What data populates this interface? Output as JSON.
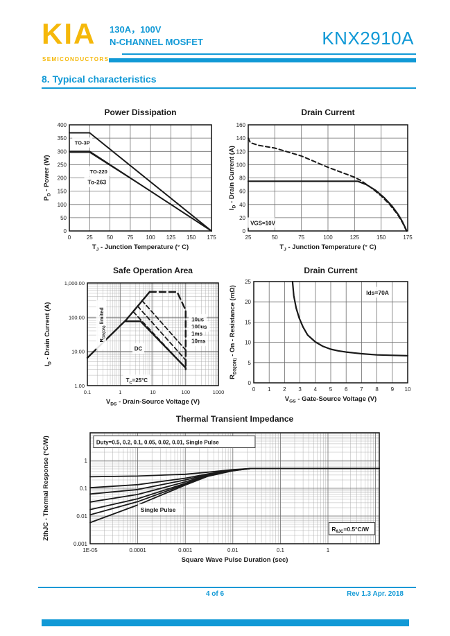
{
  "colors": {
    "cyan": "#1199D6",
    "yellow": "#F5B80A",
    "line": "#1a1a1a"
  },
  "header": {
    "logo": "KIA",
    "logo_sub": "SEMICONDUCTORS",
    "rating": "130A，100V",
    "device_type": "N-CHANNEL MOSFET",
    "part_number": "KNX2910A"
  },
  "section_title": "8. Typical characteristics",
  "footer": {
    "page": "4 of 6",
    "rev": "Rev 1.3 Apr. 2018"
  },
  "chart_data": [
    {
      "id": "power-dissipation",
      "type": "line",
      "title": "Power Dissipation",
      "xlabel": "T_{J} - Junction Temperature (° C)",
      "ylabel": "P_{D} - Power (W)",
      "xlim": [
        0,
        175
      ],
      "ylim": [
        0,
        400
      ],
      "xticks": [
        0,
        25,
        50,
        75,
        100,
        125,
        150,
        175
      ],
      "yticks": [
        0,
        50,
        100,
        150,
        200,
        250,
        300,
        350,
        400
      ],
      "grid": true,
      "legend_position": "inline",
      "series": [
        {
          "name": "TO-3P",
          "style": "solid",
          "width": 2,
          "points": [
            [
              0,
              370
            ],
            [
              25,
              370
            ],
            [
              175,
              0
            ]
          ]
        },
        {
          "name": "TO-220",
          "style": "solid",
          "width": 2,
          "points": [
            [
              0,
              300
            ],
            [
              25,
              300
            ],
            [
              175,
              0
            ]
          ]
        },
        {
          "name": "To-263",
          "style": "solid",
          "width": 1.4,
          "points": [
            [
              0,
              296
            ],
            [
              25,
              296
            ],
            [
              100,
              150
            ],
            [
              175,
              0
            ]
          ]
        }
      ],
      "annotations": [
        {
          "text": "TO-3P",
          "x": 16,
          "y": 332,
          "size": 7.5,
          "bg": true
        },
        {
          "text": "TO-220",
          "x": 36,
          "y": 224,
          "size": 7.5,
          "bg": true
        },
        {
          "text": "To-263",
          "x": 34,
          "y": 184,
          "size": 8.5,
          "bg": true
        }
      ]
    },
    {
      "id": "drain-current-tj",
      "type": "line",
      "title": "Drain Current",
      "xlabel": "T_{J} - Junction Temperature (° C)",
      "ylabel": "I_{D} - Drain Current (A)",
      "xlim": [
        25,
        175
      ],
      "ylim": [
        0,
        160
      ],
      "xticks": [
        25,
        50,
        75,
        100,
        125,
        150,
        175
      ],
      "yticks": [
        0,
        20,
        40,
        60,
        80,
        100,
        120,
        140,
        160
      ],
      "grid": true,
      "series": [
        {
          "name": "pulsed",
          "style": "dashed",
          "width": 2,
          "points": [
            [
              25,
              140
            ],
            [
              27,
              133
            ],
            [
              35,
              129
            ],
            [
              50,
              125
            ],
            [
              75,
              113
            ],
            [
              100,
              96
            ],
            [
              125,
              81
            ],
            [
              131,
              76
            ],
            [
              140,
              66
            ],
            [
              150,
              53
            ],
            [
              158,
              40
            ],
            [
              165,
              26
            ],
            [
              170,
              13
            ],
            [
              173,
              3
            ],
            [
              174,
              0
            ]
          ]
        },
        {
          "name": "continuous",
          "style": "solid",
          "width": 2.2,
          "points": [
            [
              25,
              75
            ],
            [
              128,
              75
            ],
            [
              136,
              70
            ],
            [
              145,
              61
            ],
            [
              153,
              50
            ],
            [
              160,
              38
            ],
            [
              166,
              25
            ],
            [
              170,
              14
            ],
            [
              173,
              4
            ],
            [
              174,
              0
            ]
          ]
        }
      ],
      "annotations": [
        {
          "text": "VGS=10V",
          "x": 27,
          "y": 12,
          "size": 8,
          "bg": true,
          "anchor": "start"
        }
      ]
    },
    {
      "id": "soa",
      "type": "line",
      "title": "Safe Operation Area",
      "xlabel": "V_{DS} - Drain-Source Voltage (V)",
      "ylabel": "I_{D} - Drain Current (A)",
      "xscale": "log",
      "yscale": "log",
      "xlim": [
        0.1,
        1000
      ],
      "ylim": [
        1,
        1000
      ],
      "xticks": [
        0.1,
        1,
        10,
        100,
        1000
      ],
      "xtick_labels": [
        "0.1",
        "1",
        "10",
        "100",
        "1000"
      ],
      "yticks": [
        1,
        10,
        100,
        1000
      ],
      "ytick_labels": [
        "1.00",
        "10.00",
        "100.00",
        "1,000.00"
      ],
      "grid": true,
      "series": [
        {
          "name": "rds-on-limit",
          "style": "solid",
          "width": 2.4,
          "points": [
            [
              0.1,
              6.5
            ],
            [
              1.5,
              82
            ],
            [
              8,
              550
            ]
          ]
        },
        {
          "name": "DC",
          "style": "solid",
          "width": 2.4,
          "points": [
            [
              1.5,
              76
            ],
            [
              4.2,
              76
            ],
            [
              100,
              3.3
            ],
            [
              100,
              3
            ]
          ]
        },
        {
          "name": "pulse-envelope-10us",
          "style": "longdash",
          "width": 2.4,
          "points": [
            [
              8,
              550
            ],
            [
              55,
              545
            ],
            [
              100,
              160
            ],
            [
              100,
              3.2
            ]
          ]
        },
        {
          "name": "100us",
          "style": "dashed",
          "width": 1.8,
          "points": [
            [
              4.6,
              310
            ],
            [
              100,
              11
            ]
          ]
        },
        {
          "name": "1ms",
          "style": "dashed",
          "width": 1.8,
          "points": [
            [
              3.4,
              210
            ],
            [
              100,
              5.6
            ]
          ]
        },
        {
          "name": "10ms",
          "style": "dashed",
          "width": 1.8,
          "points": [
            [
              2.5,
              145
            ],
            [
              92,
              3.6
            ]
          ]
        }
      ],
      "annotations": [
        {
          "text": "R_{DS(ON)} limited",
          "x": 0.27,
          "y": 60,
          "size": 7.5,
          "rotate": -90,
          "bg": true
        },
        {
          "text": "DC",
          "x": 3.6,
          "y": 12,
          "size": 8,
          "bg": true
        },
        {
          "text": "T_{C}=25°C",
          "x": 1.5,
          "y": 1.45,
          "size": 8,
          "bg": true,
          "anchor": "start"
        },
        {
          "text": "10µs",
          "x": 150,
          "y": 85,
          "size": 8,
          "bg": true,
          "anchor": "start"
        },
        {
          "text": "100µs",
          "x": 150,
          "y": 52,
          "size": 8,
          "bg": true,
          "anchor": "start"
        },
        {
          "text": "1ms",
          "x": 150,
          "y": 33,
          "size": 8,
          "bg": true,
          "anchor": "start"
        },
        {
          "text": "10ms",
          "x": 150,
          "y": 20,
          "size": 8,
          "bg": true,
          "anchor": "start"
        }
      ]
    },
    {
      "id": "rdson-vgs",
      "type": "line",
      "title": "Drain Current",
      "xlabel": "V_{GS} - Gate-Source Voltage (V)",
      "ylabel": "R_{DS(ON)} - On - Resistance (mΩ)",
      "xlim": [
        0,
        10
      ],
      "ylim": [
        0,
        25
      ],
      "xticks": [
        0,
        1,
        2,
        3,
        4,
        5,
        6,
        7,
        8,
        9,
        10
      ],
      "yticks": [
        0,
        5,
        10,
        15,
        20,
        25
      ],
      "grid": true,
      "series": [
        {
          "name": "rds-on",
          "style": "solid",
          "width": 2.2,
          "points": [
            [
              2.52,
              25
            ],
            [
              2.6,
              21.5
            ],
            [
              2.75,
              18.5
            ],
            [
              2.95,
              16
            ],
            [
              3.2,
              13.8
            ],
            [
              3.5,
              11.8
            ],
            [
              4,
              10.1
            ],
            [
              4.5,
              9
            ],
            [
              5,
              8.3
            ],
            [
              5.5,
              7.9
            ],
            [
              6,
              7.6
            ],
            [
              7,
              7.2
            ],
            [
              8,
              6.9
            ],
            [
              9,
              6.8
            ],
            [
              10,
              6.7
            ]
          ]
        }
      ],
      "annotations": [
        {
          "text": "Ids=70A",
          "x": 7.3,
          "y": 22.3,
          "size": 8.5,
          "bg": true,
          "anchor": "start"
        }
      ]
    },
    {
      "id": "thermal",
      "type": "line",
      "title": "Thermal Transient Impedance",
      "xlabel": "Square Wave Pulse Duration (sec)",
      "ylabel": "ZthJC - Thermal Response (°C/W)",
      "xscale": "log",
      "yscale": "log",
      "xlim": [
        1e-05,
        12
      ],
      "ylim": [
        0.001,
        10
      ],
      "xticks": [
        1e-05,
        0.0001,
        0.001,
        0.01,
        0.1,
        1
      ],
      "xtick_labels": [
        "1E-05",
        "0.0001",
        "0.001",
        "0.01",
        "0.1",
        "1"
      ],
      "yticks": [
        0.001,
        0.01,
        0.1,
        1
      ],
      "ytick_labels": [
        "0.001",
        "0.01",
        "0.1",
        "1"
      ],
      "grid": true,
      "series": [
        {
          "name": "duty-0.5",
          "style": "solid",
          "width": 1.8,
          "points": [
            [
              1e-05,
              0.26
            ],
            [
              0.0001,
              0.275
            ],
            [
              0.001,
              0.32
            ],
            [
              0.003,
              0.38
            ],
            [
              0.01,
              0.47
            ],
            [
              0.025,
              0.52
            ],
            [
              12,
              0.52
            ]
          ]
        },
        {
          "name": "duty-0.2",
          "style": "solid",
          "width": 1.8,
          "points": [
            [
              1e-05,
              0.105
            ],
            [
              0.0001,
              0.135
            ],
            [
              0.001,
              0.23
            ],
            [
              0.003,
              0.33
            ],
            [
              0.01,
              0.46
            ],
            [
              0.025,
              0.52
            ],
            [
              12,
              0.52
            ]
          ]
        },
        {
          "name": "duty-0.1",
          "style": "solid",
          "width": 1.8,
          "points": [
            [
              1e-05,
              0.062
            ],
            [
              0.0001,
              0.09
            ],
            [
              0.001,
              0.2
            ],
            [
              0.003,
              0.31
            ],
            [
              0.01,
              0.45
            ],
            [
              0.025,
              0.52
            ],
            [
              12,
              0.52
            ]
          ]
        },
        {
          "name": "duty-0.05",
          "style": "solid",
          "width": 1.8,
          "points": [
            [
              1e-05,
              0.032
            ],
            [
              0.0001,
              0.06
            ],
            [
              0.001,
              0.17
            ],
            [
              0.003,
              0.3
            ],
            [
              0.01,
              0.44
            ],
            [
              0.025,
              0.52
            ],
            [
              12,
              0.52
            ]
          ]
        },
        {
          "name": "duty-0.02",
          "style": "solid",
          "width": 1.8,
          "points": [
            [
              1e-05,
              0.017
            ],
            [
              0.0001,
              0.042
            ],
            [
              0.001,
              0.15
            ],
            [
              0.003,
              0.29
            ],
            [
              0.01,
              0.44
            ],
            [
              0.025,
              0.52
            ],
            [
              12,
              0.52
            ]
          ]
        },
        {
          "name": "duty-0.01",
          "style": "solid",
          "width": 1.8,
          "points": [
            [
              1e-05,
              0.011
            ],
            [
              0.0001,
              0.033
            ],
            [
              0.001,
              0.14
            ],
            [
              0.003,
              0.28
            ],
            [
              0.01,
              0.43
            ],
            [
              0.025,
              0.52
            ],
            [
              12,
              0.52
            ]
          ]
        },
        {
          "name": "single-pulse",
          "style": "solid",
          "width": 1.8,
          "points": [
            [
              1e-05,
              0.0058
            ],
            [
              0.0001,
              0.025
            ],
            [
              0.001,
              0.13
            ],
            [
              0.003,
              0.27
            ],
            [
              0.01,
              0.43
            ],
            [
              0.025,
              0.52
            ],
            [
              12,
              0.52
            ]
          ]
        }
      ],
      "annotations": [
        {
          "text": "Duty=0.5, 0.2, 0.1, 0.05, 0.02, 0.01, Single Pulse",
          "x": 1.35e-05,
          "y": 4.6,
          "size": 8,
          "box": true,
          "anchor": "start"
        },
        {
          "text": "Single Pulse",
          "x": 0.000115,
          "y": 0.017,
          "size": 8.5,
          "bg": true,
          "anchor": "start"
        },
        {
          "text": "R_{θJC}=0.5°C/W",
          "x": 1.2,
          "y": 0.0034,
          "size": 8.5,
          "box": true,
          "anchor": "start"
        }
      ]
    }
  ]
}
